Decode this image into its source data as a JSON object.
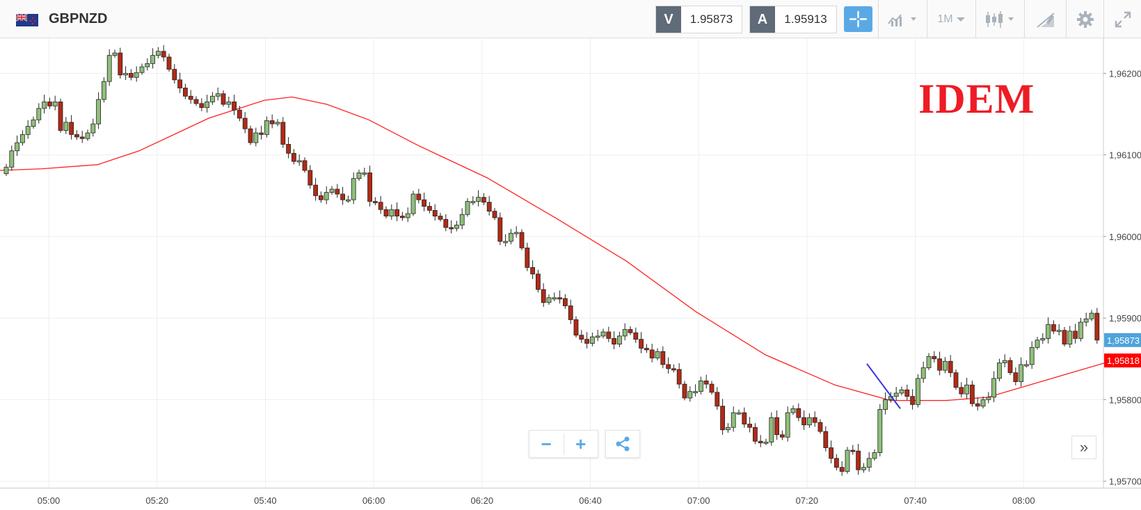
{
  "header": {
    "symbol": "GBPNZD",
    "flag_icon": "gb-nz-flag-icon",
    "sell": {
      "tag": "V",
      "price": "1.95873"
    },
    "buy": {
      "tag": "A",
      "price": "1.95913"
    },
    "tools": {
      "crosshair_icon": "crosshair-icon",
      "chart_type_icon": "chart-type-icon",
      "timeframe": "1M",
      "indicators_icon": "candlestick-icon",
      "draw_icon": "draw-icon",
      "settings_icon": "gear-icon",
      "fullscreen_icon": "fullscreen-icon"
    }
  },
  "controls": {
    "zoom_out": "−",
    "zoom_in": "+",
    "share_icon": "share-icon",
    "scroll_right": "»"
  },
  "watermark": "IDEM",
  "colors": {
    "bull": "#8fbf7a",
    "bear": "#b12a15",
    "ma_line": "#ff2020",
    "annotation_line": "#3333dd",
    "price_label": "#4fa3dc",
    "ma_label": "#ff0000",
    "watermark": "#ee1c25"
  },
  "chart_data": {
    "type": "candlestick",
    "symbol": "GBPNZD",
    "timeframe": "1M",
    "x_ticks": [
      "05:00",
      "05:20",
      "05:40",
      "06:00",
      "06:20",
      "06:40",
      "07:00",
      "07:20",
      "07:40",
      "08:00"
    ],
    "y_ticks": [
      "1,95700",
      "1,95800",
      "1,95900",
      "1,96000",
      "1,96100",
      "1,96200"
    ],
    "ylim": [
      1.95692,
      1.96243
    ],
    "current_price_label": "1,95873",
    "ma_price_label": "1,95818",
    "closes": [
      1.96085,
      1.96105,
      1.96115,
      1.96125,
      1.96135,
      1.96143,
      1.96157,
      1.96165,
      1.9616,
      1.96165,
      1.9613,
      1.9614,
      1.96125,
      1.96122,
      1.9612,
      1.96127,
      1.96138,
      1.96168,
      1.9619,
      1.96222,
      1.96225,
      1.96198,
      1.962,
      1.96195,
      1.96201,
      1.96208,
      1.96212,
      1.96222,
      1.96227,
      1.9622,
      1.96205,
      1.96192,
      1.96182,
      1.96172,
      1.96168,
      1.96163,
      1.96158,
      1.96165,
      1.96172,
      1.96175,
      1.96162,
      1.96165,
      1.96155,
      1.96145,
      1.96132,
      1.96115,
      1.96127,
      1.96125,
      1.96142,
      1.96138,
      1.9614,
      1.96113,
      1.96102,
      1.96092,
      1.96093,
      1.96081,
      1.96063,
      1.9605,
      1.96045,
      1.96054,
      1.96058,
      1.96052,
      1.96045,
      1.96045,
      1.96071,
      1.96078,
      1.96078,
      1.96043,
      1.96042,
      1.96033,
      1.96025,
      1.96033,
      1.96025,
      1.96023,
      1.96028,
      1.96052,
      1.96045,
      1.96037,
      1.96032,
      1.96025,
      1.96021,
      1.96011,
      1.9601,
      1.96014,
      1.96027,
      1.96043,
      1.96043,
      1.96048,
      1.96042,
      1.96031,
      1.96023,
      1.95994,
      1.95994,
      1.96004,
      1.96005,
      1.95986,
      1.95962,
      1.95954,
      1.95935,
      1.95919,
      1.95925,
      1.95925,
      1.95924,
      1.95915,
      1.95898,
      1.95879,
      1.95874,
      1.95869,
      1.95877,
      1.95878,
      1.95883,
      1.95875,
      1.95868,
      1.95878,
      1.95886,
      1.95882,
      1.95874,
      1.95863,
      1.95861,
      1.95851,
      1.95859,
      1.95843,
      1.95838,
      1.95837,
      1.95819,
      1.95802,
      1.9581,
      1.9581,
      1.95823,
      1.95819,
      1.95809,
      1.95792,
      1.95763,
      1.95766,
      1.95784,
      1.95784,
      1.9577,
      1.95766,
      1.95749,
      1.95747,
      1.95748,
      1.95778,
      1.95757,
      1.95754,
      1.95784,
      1.95789,
      1.95778,
      1.95769,
      1.95778,
      1.95772,
      1.95761,
      1.95741,
      1.95728,
      1.95717,
      1.95712,
      1.95738,
      1.95737,
      1.95714,
      1.95717,
      1.95728,
      1.95735,
      1.95788,
      1.958,
      1.95804,
      1.95808,
      1.95812,
      1.95804,
      1.95794,
      1.95826,
      1.95839,
      1.95853,
      1.9585,
      1.95836,
      1.95847,
      1.95833,
      1.95815,
      1.95807,
      1.95818,
      1.95795,
      1.95792,
      1.958,
      1.95803,
      1.95826,
      1.95845,
      1.95848,
      1.95833,
      1.95822,
      1.95843,
      1.95843,
      1.95864,
      1.95873,
      1.95875,
      1.95892,
      1.95884,
      1.95885,
      1.95868,
      1.95884,
      1.95875,
      1.95895,
      1.95899,
      1.95906,
      1.95873
    ],
    "ma": [
      [
        0,
        1.96081
      ],
      [
        60,
        1.96083
      ],
      [
        140,
        1.96088
      ],
      [
        200,
        1.96105
      ],
      [
        300,
        1.96145
      ],
      [
        380,
        1.96167
      ],
      [
        420,
        1.96171
      ],
      [
        470,
        1.96162
      ],
      [
        530,
        1.96143
      ],
      [
        600,
        1.96112
      ],
      [
        700,
        1.96072
      ],
      [
        800,
        1.96022
      ],
      [
        900,
        1.9597
      ],
      [
        1000,
        1.95908
      ],
      [
        1100,
        1.95855
      ],
      [
        1200,
        1.95818
      ],
      [
        1280,
        1.95799
      ],
      [
        1360,
        1.95799
      ],
      [
        1420,
        1.95803
      ],
      [
        1500,
        1.95823
      ],
      [
        1560,
        1.95838
      ],
      [
        1600,
        1.95848
      ]
    ],
    "annotation_line": {
      "from": [
        1246,
        1.95844
      ],
      "to": [
        1294,
        1.95789
      ]
    }
  }
}
